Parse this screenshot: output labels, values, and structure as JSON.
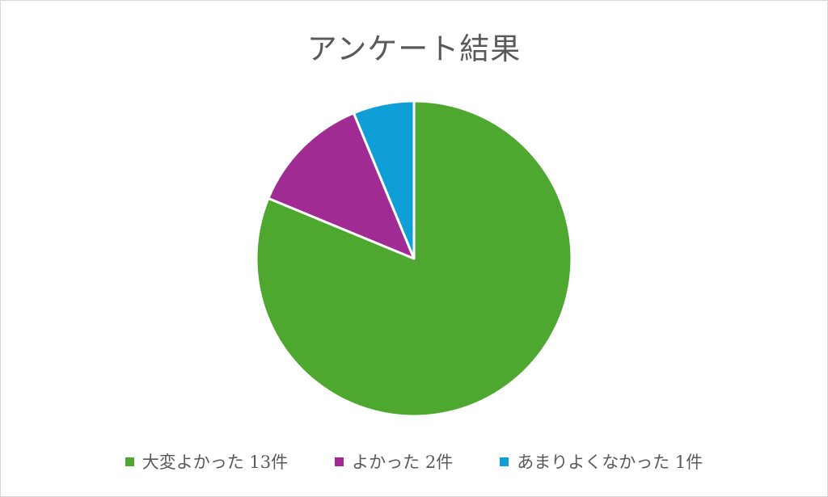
{
  "chart_data": {
    "type": "pie",
    "title": "アンケート結果",
    "categories": [
      "大変よかった",
      "よかった",
      "あまりよくなかった"
    ],
    "values": [
      13,
      2,
      1
    ],
    "legend_labels": [
      "大変よかった 13件",
      "よかった 2件",
      "あまりよくなかった 1件"
    ],
    "colors": [
      "#4ea72e",
      "#a02b93",
      "#0f9ed5"
    ],
    "legend_position": "bottom",
    "start_angle": "top",
    "direction": "clockwise"
  }
}
